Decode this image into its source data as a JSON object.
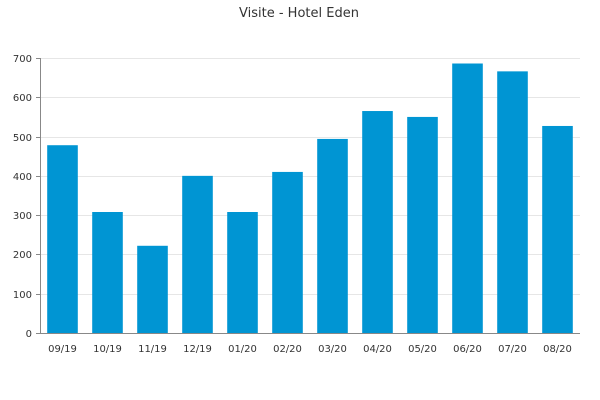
{
  "chart_data": {
    "type": "bar",
    "title": "Visite - Hotel Eden",
    "xlabel": "",
    "ylabel": "",
    "categories": [
      "09/19",
      "10/19",
      "11/19",
      "12/19",
      "01/20",
      "02/20",
      "03/20",
      "04/20",
      "05/20",
      "06/20",
      "07/20",
      "08/20"
    ],
    "values": [
      478,
      308,
      222,
      400,
      308,
      410,
      494,
      565,
      550,
      686,
      666,
      527
    ],
    "ylim": [
      0,
      700
    ],
    "yticks": [
      0,
      100,
      200,
      300,
      400,
      500,
      600,
      700
    ],
    "grid": true,
    "legend": "none",
    "colors": {
      "bar": "#0095d3",
      "grid": "#e6e6e6",
      "axis": "#888888",
      "text": "#333333"
    }
  }
}
